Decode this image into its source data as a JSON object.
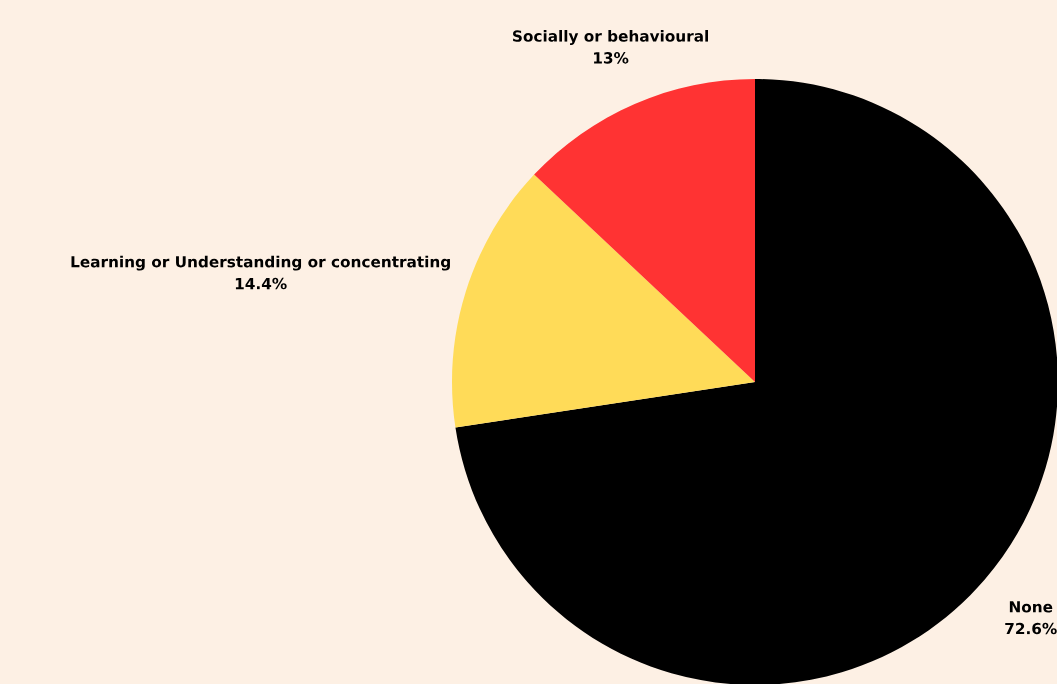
{
  "chart_data": {
    "type": "pie",
    "categories": [
      "None",
      "Learning or Understanding or concentrating",
      "Socially or behavioural"
    ],
    "values": [
      72.6,
      14.4,
      13
    ],
    "value_labels": [
      "72.6%",
      "14.4%",
      "13%"
    ],
    "colors": [
      "#000000",
      "#ffdb58",
      "#ff3333"
    ]
  }
}
